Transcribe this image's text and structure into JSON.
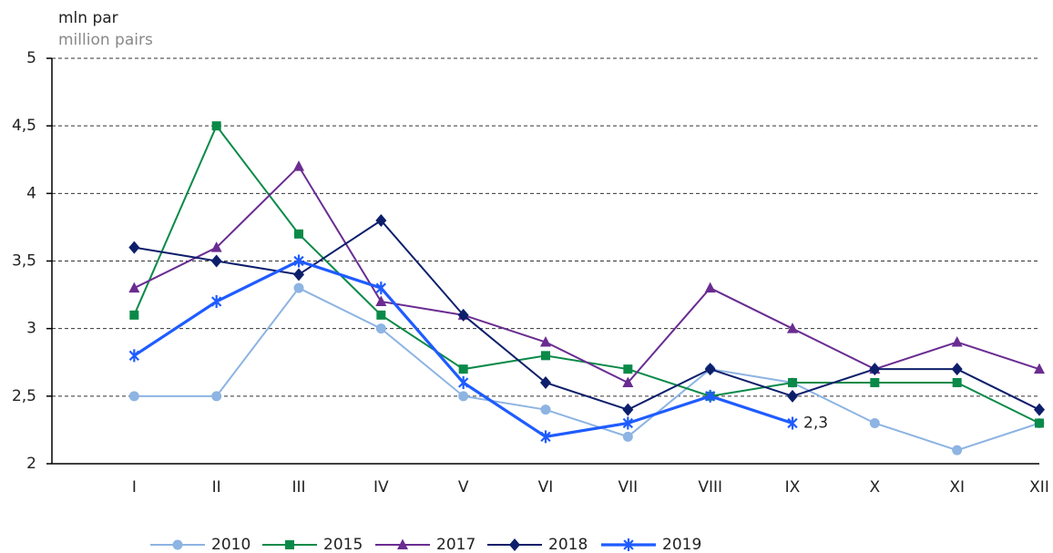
{
  "chart_data": {
    "type": "line",
    "y_label": "mln par",
    "y_label_secondary": "million pairs",
    "categories": [
      "I",
      "II",
      "III",
      "IV",
      "V",
      "VI",
      "VII",
      "VIII",
      "IX",
      "X",
      "XI",
      "XII"
    ],
    "series": [
      {
        "name": "2010",
        "color": "#8db4e2",
        "marker": "circle",
        "values": [
          2.5,
          2.5,
          3.3,
          3.0,
          2.5,
          2.4,
          2.2,
          2.7,
          2.6,
          2.3,
          2.1,
          2.3
        ]
      },
      {
        "name": "2015",
        "color": "#0a8a48",
        "marker": "square",
        "values": [
          3.1,
          4.5,
          3.7,
          3.1,
          2.7,
          2.8,
          2.7,
          2.5,
          2.6,
          2.6,
          2.6,
          2.3
        ]
      },
      {
        "name": "2017",
        "color": "#6a2c91",
        "marker": "triangle",
        "values": [
          3.3,
          3.6,
          4.2,
          3.2,
          3.1,
          2.9,
          2.6,
          3.3,
          3.0,
          2.7,
          2.9,
          2.7
        ]
      },
      {
        "name": "2018",
        "color": "#0d1f6b",
        "marker": "diamond",
        "values": [
          3.6,
          3.5,
          3.4,
          3.8,
          3.1,
          2.6,
          2.4,
          2.7,
          2.5,
          2.7,
          2.7,
          2.4
        ]
      },
      {
        "name": "2019",
        "color": "#1f5cff",
        "marker": "asterisk",
        "values": [
          2.8,
          3.2,
          3.5,
          3.3,
          2.6,
          2.2,
          2.3,
          2.5,
          2.3,
          null,
          null,
          null
        ],
        "value_labels": [
          null,
          null,
          null,
          null,
          null,
          null,
          null,
          null,
          "2,3",
          null,
          null,
          null
        ]
      }
    ],
    "ylim": [
      2,
      5
    ],
    "yticks": [
      2,
      {
        "value": 2.5,
        "label": "2,5"
      },
      3,
      {
        "value": 3.5,
        "label": "3,5"
      },
      4,
      {
        "value": 4.5,
        "label": "4,5"
      },
      5
    ],
    "grid": true,
    "legend": "bottom"
  }
}
